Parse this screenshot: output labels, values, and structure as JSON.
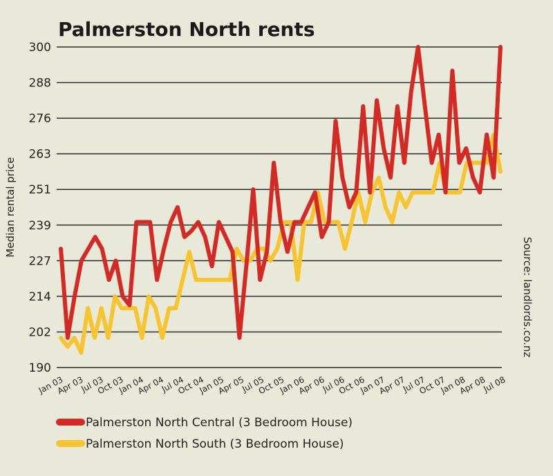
{
  "chart_data": {
    "type": "line",
    "title": "Palmerston North rents",
    "ylabel": "Median rental price",
    "source": "Source: landlords.co.nz",
    "ylim": [
      190,
      300
    ],
    "yticks": [
      190,
      202,
      214,
      227,
      239,
      251,
      263,
      276,
      288,
      300
    ],
    "xtick_labels": [
      "Jan 03",
      "Apr 03",
      "Jul 03",
      "Oct 03",
      "Jan 04",
      "Apr 04",
      "Jul 04",
      "Oct 04",
      "Jan 05",
      "Apr 05",
      "Jul 05",
      "Oct 05",
      "Jan 06",
      "Apr 06",
      "Jul 06",
      "Oct 06",
      "Jan 07",
      "Apr 07",
      "Jul 07",
      "Oct 07",
      "Jan 08",
      "Apr 08",
      "Jul 08"
    ],
    "legend_position": "bottom",
    "grid": true,
    "series": [
      {
        "name": "Palmerston North Central (3 Bedroom House)",
        "color": "#d42a26",
        "values": [
          231,
          200,
          214,
          227,
          231,
          235,
          231,
          220,
          227,
          214,
          211,
          240,
          240,
          240,
          220,
          231,
          240,
          245,
          235,
          237,
          240,
          235,
          225,
          240,
          235,
          230,
          200,
          225,
          251,
          220,
          230,
          260,
          240,
          230,
          240,
          240,
          245,
          250,
          235,
          240,
          275,
          255,
          245,
          250,
          280,
          250,
          282,
          265,
          255,
          280,
          260,
          285,
          300,
          280,
          260,
          270,
          250,
          292,
          260,
          265,
          255,
          250,
          270,
          255,
          300
        ]
      },
      {
        "name": "Palmerston North South (3 Bedroom House)",
        "color": "#f7c431",
        "values": [
          200,
          197,
          200,
          195,
          210,
          200,
          210,
          200,
          214,
          210,
          210,
          210,
          200,
          214,
          210,
          200,
          210,
          210,
          220,
          230,
          220,
          220,
          220,
          220,
          220,
          220,
          231,
          227,
          227,
          231,
          231,
          227,
          231,
          240,
          240,
          220,
          240,
          240,
          250,
          240,
          240,
          240,
          231,
          240,
          250,
          240,
          250,
          255,
          245,
          240,
          250,
          245,
          250,
          250,
          250,
          250,
          260,
          250,
          250,
          250,
          260,
          260,
          260,
          260,
          270,
          257
        ]
      }
    ]
  }
}
